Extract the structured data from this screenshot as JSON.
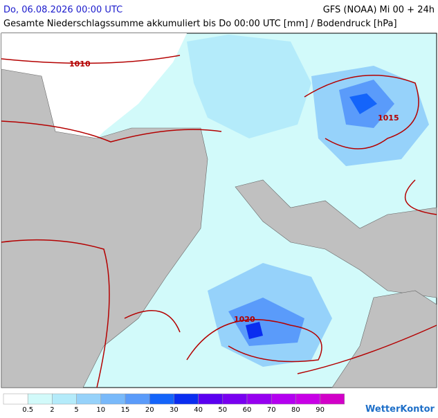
{
  "header": {
    "datetime": "Do, 06.08.2026 00:00 UTC",
    "model": "GFS (NOAA) Mi 00 + 24h",
    "subtitle": "Gesamte Niederschlagssumme akkumuliert bis Do 00:00 UTC [mm] / Bodendruck [hPa]"
  },
  "isobars": [
    {
      "label": "1010"
    },
    {
      "label": "1015"
    },
    {
      "label": "1020"
    }
  ],
  "legend": {
    "labels": [
      0.5,
      2,
      5,
      10,
      15,
      20,
      30,
      40,
      50,
      60,
      70,
      80,
      90
    ],
    "colors": [
      "#ffffff",
      "#d2fafa",
      "#b4ebfa",
      "#96d2fa",
      "#78b9fa",
      "#5a9bfa",
      "#1464fa",
      "#0a2df0",
      "#5a00f0",
      "#7800f0",
      "#9600f0",
      "#b400f0",
      "#c800e6",
      "#d200c8"
    ]
  },
  "brand": "WetterKontor"
}
